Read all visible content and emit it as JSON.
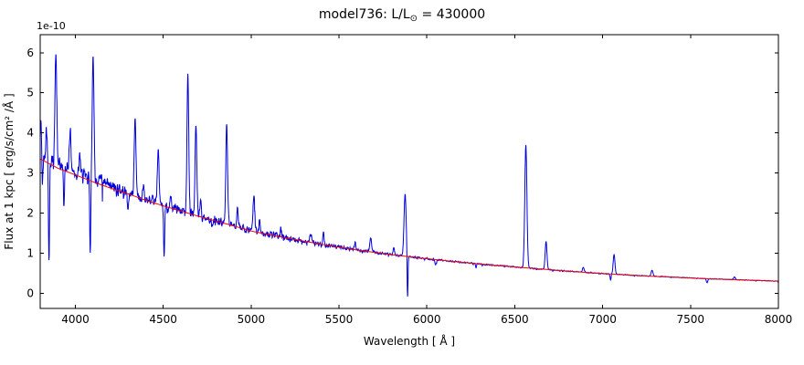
{
  "header": {
    "title_prefix": "model736: L/L",
    "title_sub": "⊙",
    "title_suffix": " = 430000"
  },
  "chart_data": {
    "type": "line",
    "title": "model736: L/L⊙ = 430000",
    "xlabel": "Wavelength [ Å ]",
    "ylabel": "Flux at 1 kpc [ erg/s/cm² /Å ]",
    "y_offset_text": "1e-10",
    "y_unit": "1e-10 erg/s/cm²/Å",
    "xlim": [
      3800,
      8000
    ],
    "ylim": [
      -0.38,
      6.45
    ],
    "xticks": [
      4000,
      4500,
      5000,
      5500,
      6000,
      6500,
      7000,
      7500,
      8000
    ],
    "yticks": [
      0,
      1,
      2,
      3,
      4,
      5,
      6
    ],
    "grid": false,
    "legend": "none",
    "series": [
      {
        "name": "observed spectrum",
        "color": "#0000dd",
        "role": "spectrum",
        "linewidth": 1
      },
      {
        "name": "continuum fit",
        "color": "#ff0000",
        "role": "continuum",
        "linewidth": 1
      }
    ],
    "continuum_points": [
      [
        3800,
        3.35
      ],
      [
        3900,
        3.12
      ],
      [
        4000,
        2.95
      ],
      [
        4100,
        2.78
      ],
      [
        4200,
        2.62
      ],
      [
        4300,
        2.48
      ],
      [
        4400,
        2.32
      ],
      [
        4500,
        2.18
      ],
      [
        4600,
        2.05
      ],
      [
        4700,
        1.92
      ],
      [
        4800,
        1.8
      ],
      [
        4900,
        1.68
      ],
      [
        5000,
        1.55
      ],
      [
        5200,
        1.38
      ],
      [
        5400,
        1.22
      ],
      [
        5600,
        1.08
      ],
      [
        5800,
        0.96
      ],
      [
        6000,
        0.86
      ],
      [
        6200,
        0.77
      ],
      [
        6400,
        0.69
      ],
      [
        6600,
        0.62
      ],
      [
        6800,
        0.55
      ],
      [
        7000,
        0.49
      ],
      [
        7200,
        0.44
      ],
      [
        7400,
        0.4
      ],
      [
        7600,
        0.36
      ],
      [
        7800,
        0.33
      ],
      [
        8000,
        0.3
      ]
    ],
    "blue_excess_points": [
      [
        3800,
        0.1
      ],
      [
        4000,
        0.06
      ],
      [
        4300,
        0.02
      ],
      [
        4500,
        0.0
      ],
      [
        8000,
        0.0
      ]
    ],
    "emission_lines": [
      [
        3805,
        0.9,
        4
      ],
      [
        3835,
        0.8,
        4
      ],
      [
        3889,
        2.75,
        5
      ],
      [
        3970,
        1.0,
        5
      ],
      [
        4026,
        0.45,
        4
      ],
      [
        4101,
        3.15,
        5
      ],
      [
        4144,
        0.3,
        4
      ],
      [
        4340,
        1.95,
        5
      ],
      [
        4388,
        0.35,
        4
      ],
      [
        4471,
        1.35,
        5
      ],
      [
        4542,
        0.3,
        4
      ],
      [
        4640,
        3.5,
        5
      ],
      [
        4686,
        2.2,
        5
      ],
      [
        4713,
        0.4,
        4
      ],
      [
        4861,
        2.5,
        5
      ],
      [
        4922,
        0.5,
        4
      ],
      [
        5016,
        0.9,
        5
      ],
      [
        5048,
        0.3,
        4
      ],
      [
        5169,
        0.2,
        4
      ],
      [
        5340,
        0.2,
        5
      ],
      [
        5411,
        0.3,
        4
      ],
      [
        5592,
        0.2,
        4
      ],
      [
        5680,
        0.35,
        5
      ],
      [
        5812,
        0.2,
        4
      ],
      [
        5876,
        1.55,
        6
      ],
      [
        6563,
        3.05,
        6
      ],
      [
        6678,
        0.7,
        5
      ],
      [
        6890,
        0.12,
        5
      ],
      [
        7065,
        0.5,
        5
      ],
      [
        7281,
        0.15,
        5
      ],
      [
        7750,
        0.07,
        5
      ]
    ],
    "absorption_lines": [
      [
        3812,
        0.9,
        3
      ],
      [
        3850,
        2.5,
        3
      ],
      [
        3935,
        0.9,
        3
      ],
      [
        4085,
        1.75,
        3
      ],
      [
        4300,
        0.5,
        3
      ],
      [
        4505,
        1.3,
        3
      ],
      [
        4780,
        0.25,
        3
      ],
      [
        5890,
        1.1,
        2.5
      ],
      [
        6050,
        0.12,
        4
      ],
      [
        6280,
        0.1,
        3
      ],
      [
        7045,
        0.15,
        3
      ],
      [
        7594,
        0.1,
        4
      ]
    ],
    "noise": {
      "seed": 42,
      "relative_amplitude_blue": 0.05,
      "relative_amplitude_red": 0.02,
      "taper_start": 5000,
      "taper_slope": 3e-05
    }
  }
}
